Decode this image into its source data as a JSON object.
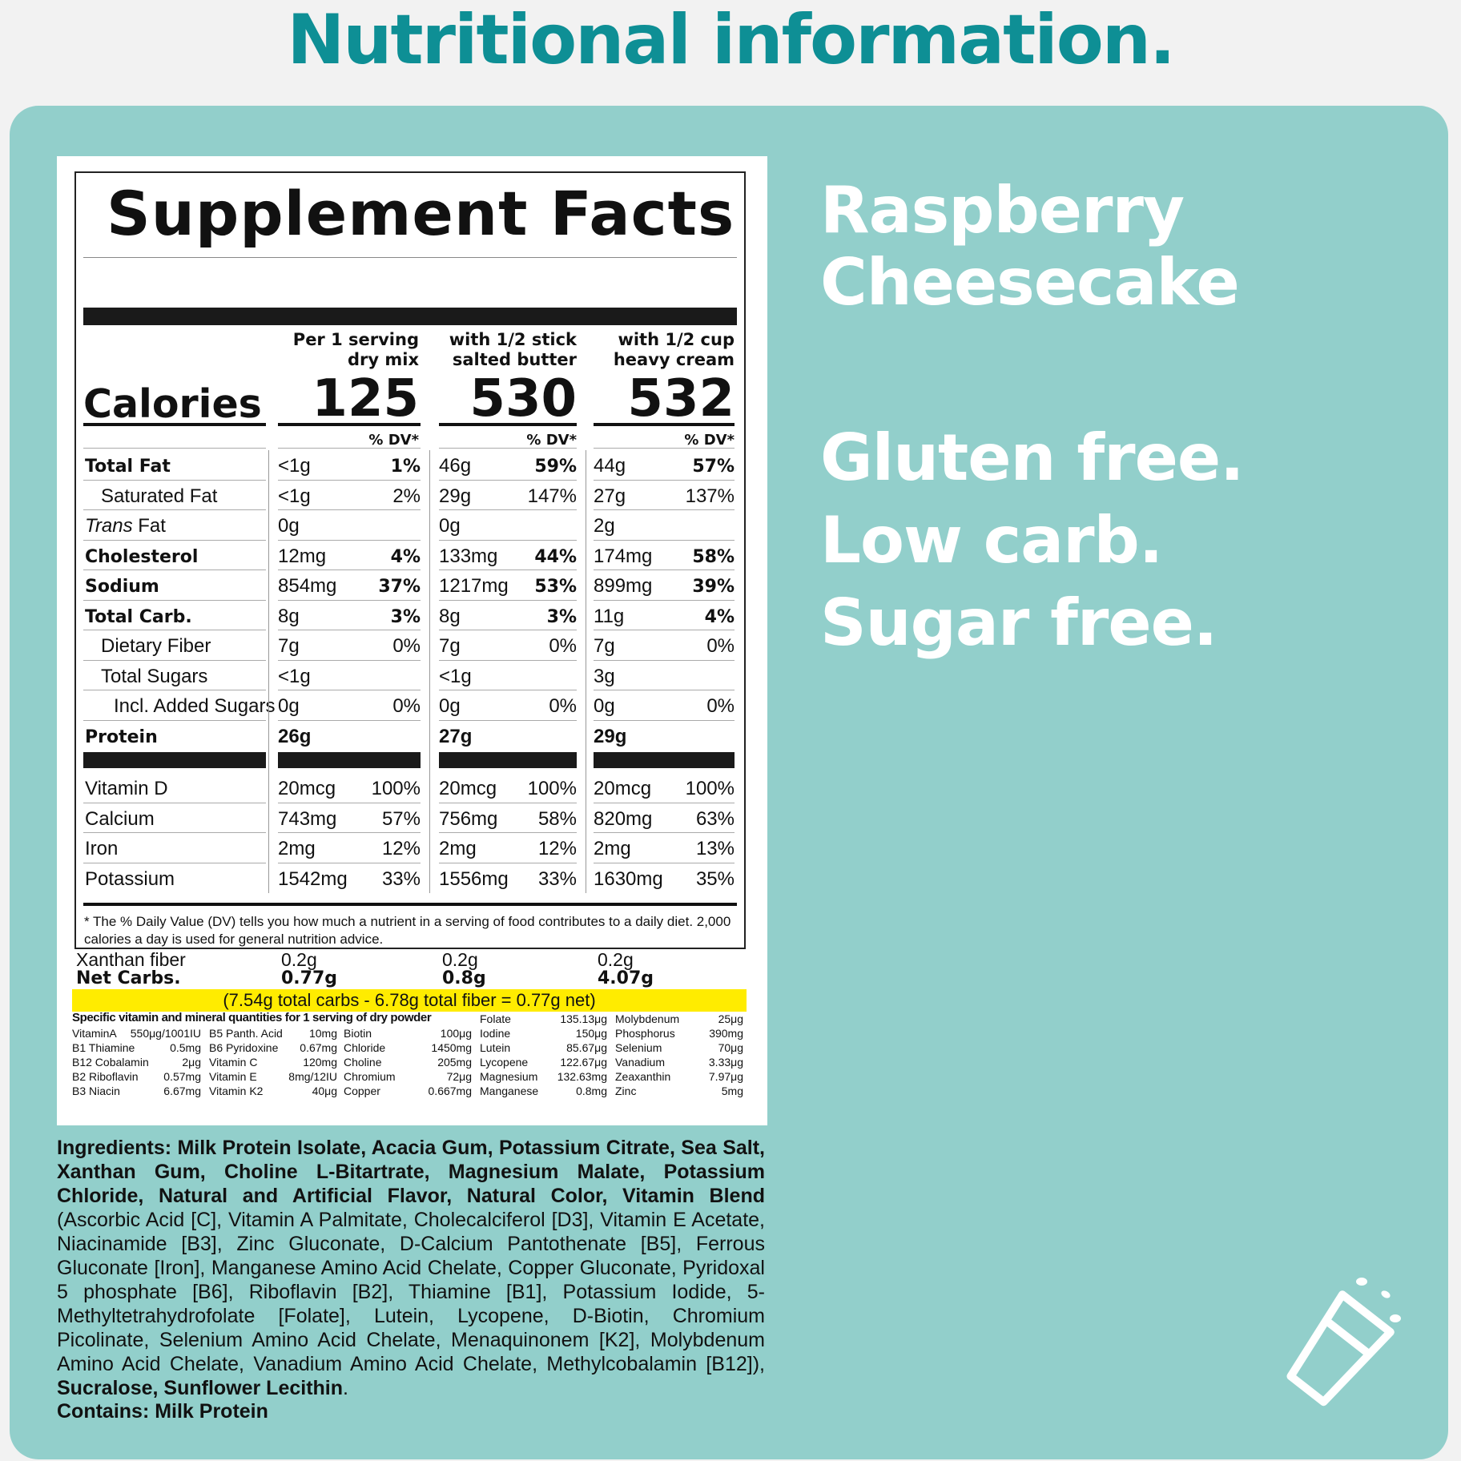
{
  "header": {
    "title": "Nutritional information."
  },
  "facts": {
    "title": "Supplement Facts",
    "calories_label": "Calories",
    "columns": [
      {
        "line1": "Per 1 serving",
        "line2": "dry mix",
        "calories": "125"
      },
      {
        "line1": "with 1/2 stick",
        "line2": "salted butter",
        "calories": "530"
      },
      {
        "line1": "with 1/2 cup",
        "line2": "heavy cream",
        "calories": "532"
      }
    ],
    "dv_header": "% DV*",
    "rows": [
      {
        "name": "Total Fat",
        "vals": [
          [
            "<1g",
            "1%"
          ],
          [
            "46g",
            "59%"
          ],
          [
            "44g",
            "57%"
          ]
        ]
      },
      {
        "name": "Saturated Fat",
        "vals": [
          [
            "<1g",
            "2%"
          ],
          [
            "29g",
            "147%"
          ],
          [
            "27g",
            "137%"
          ]
        ]
      },
      {
        "name_italic": "Trans",
        "name": " Fat",
        "vals": [
          [
            "0g",
            ""
          ],
          [
            "0g",
            ""
          ],
          [
            "2g",
            ""
          ]
        ]
      },
      {
        "name": "Cholesterol",
        "vals": [
          [
            "12mg",
            "4%"
          ],
          [
            "133mg",
            "44%"
          ],
          [
            "174mg",
            "58%"
          ]
        ]
      },
      {
        "name": "Sodium",
        "vals": [
          [
            "854mg",
            "37%"
          ],
          [
            "1217mg",
            "53%"
          ],
          [
            "899mg",
            "39%"
          ]
        ]
      },
      {
        "name": "Total Carb.",
        "vals": [
          [
            "8g",
            "3%"
          ],
          [
            "8g",
            "3%"
          ],
          [
            "11g",
            "4%"
          ]
        ]
      },
      {
        "name": "Dietary Fiber",
        "vals": [
          [
            "7g",
            "0%"
          ],
          [
            "7g",
            "0%"
          ],
          [
            "7g",
            "0%"
          ]
        ]
      },
      {
        "name": "Total Sugars",
        "vals": [
          [
            "<1g",
            ""
          ],
          [
            "<1g",
            ""
          ],
          [
            "3g",
            ""
          ]
        ]
      },
      {
        "name": "Incl. Added Sugars",
        "vals": [
          [
            "0g",
            "0%"
          ],
          [
            "0g",
            "0%"
          ],
          [
            "0g",
            "0%"
          ]
        ]
      },
      {
        "name": "Protein",
        "vals": [
          [
            "26g",
            ""
          ],
          [
            "27g",
            ""
          ],
          [
            "29g",
            ""
          ]
        ]
      }
    ],
    "vitamins": [
      {
        "name": "Vitamin D",
        "vals": [
          [
            "20mcg",
            "100%"
          ],
          [
            "20mcg",
            "100%"
          ],
          [
            "20mcg",
            "100%"
          ]
        ]
      },
      {
        "name": "Calcium",
        "vals": [
          [
            "743mg",
            "57%"
          ],
          [
            "756mg",
            "58%"
          ],
          [
            "820mg",
            "63%"
          ]
        ]
      },
      {
        "name": "Iron",
        "vals": [
          [
            "2mg",
            "12%"
          ],
          [
            "2mg",
            "12%"
          ],
          [
            "2mg",
            "13%"
          ]
        ]
      },
      {
        "name": "Potassium",
        "vals": [
          [
            "1542mg",
            "33%"
          ],
          [
            "1556mg",
            "33%"
          ],
          [
            "1630mg",
            "35%"
          ]
        ]
      }
    ],
    "footnote": "* The % Daily Value (DV) tells you how much a nutrient in a serving of food contributes to a daily diet. 2,000 calories a day is used for general nutrition advice."
  },
  "extras": {
    "xanthan_label": "Xanthan fiber",
    "xanthan_vals": [
      "0.2g",
      "0.2g",
      "0.2g"
    ],
    "netcarbs_label": "Net Carbs.",
    "netcarbs_vals": [
      "0.77g",
      "0.8g",
      "4.07g"
    ],
    "formula": "(7.54g total carbs - 6.78g total fiber = 0.77g net)"
  },
  "vitamin_table": {
    "heading": "Specific vitamin and mineral quantities for 1 serving of dry powder",
    "col1": [
      [
        "VitaminA",
        "550μg/1001IU"
      ],
      [
        "B1 Thiamine",
        "0.5mg"
      ],
      [
        "B12 Cobalamin",
        "2μg"
      ],
      [
        "B2 Riboflavin",
        "0.57mg"
      ],
      [
        "B3 Niacin",
        "6.67mg"
      ]
    ],
    "col2": [
      [
        "B5 Panth. Acid",
        "10mg"
      ],
      [
        "B6 Pyridoxine",
        "0.67mg"
      ],
      [
        "Vitamin C",
        "120mg"
      ],
      [
        "Vitamin E",
        "8mg/12IU"
      ],
      [
        "Vitamin K2",
        "40μg"
      ]
    ],
    "col3": [
      [
        "Biotin",
        "100μg"
      ],
      [
        "Chloride",
        "1450mg"
      ],
      [
        "Choline",
        "205mg"
      ],
      [
        "Chromium",
        "72μg"
      ],
      [
        "Copper",
        "0.667mg"
      ]
    ],
    "col4": [
      [
        "Folate",
        "135.13μg"
      ],
      [
        "Iodine",
        "150μg"
      ],
      [
        "Lutein",
        "85.67μg"
      ],
      [
        "Lycopene",
        "122.67μg"
      ],
      [
        "Magnesium",
        "132.63mg"
      ],
      [
        "Manganese",
        "0.8mg"
      ]
    ],
    "col5": [
      [
        "Molybdenum",
        "25μg"
      ],
      [
        "Phosphorus",
        "390mg"
      ],
      [
        "Selenium",
        "70μg"
      ],
      [
        "Vanadium",
        "3.33μg"
      ],
      [
        "Zeaxanthin",
        "7.97μg"
      ],
      [
        "Zinc",
        "5mg"
      ]
    ]
  },
  "product": {
    "flavor_line1": "Raspberry",
    "flavor_line2": "Cheesecake",
    "claim1": "Gluten free.",
    "claim2": "Low carb.",
    "claim3": "Sugar free."
  },
  "ingredients": {
    "bold_part": "Ingredients: Milk Protein Isolate, Acacia Gum, Potassium Citrate, Sea Salt, Xanthan Gum, Choline L-Bitartrate, Magnesium Malate, Potassium Chloride, Natural and Artificial Flavor, Natural Color, Vitamin Blend",
    "regular_part": " (Ascorbic Acid [C], Vitamin A Palmitate, Cholecalciferol [D3], Vitamin E Acetate, Niacinamide [B3], Zinc Gluconate, D-Calcium Pantothenate [B5], Ferrous Gluconate [Iron], Manganese Amino Acid Chelate, Copper Gluconate, Pyridoxal 5 phosphate [B6], Riboflavin [B2], Thiamine [B1], Potassium Iodide, 5-Methyltetrahydrofolate [Folate], Lutein, Lycopene, D-Biotin, Chromium Picolinate, Selenium Amino Acid Chelate, Menaquinonem [K2], Molybdenum Amino Acid Chelate, Vanadium Amino Acid Chelate, Methylcobalamin [B12]), ",
    "bold_end": "Sucralose, Sunflower Lecithin",
    "period": ".",
    "contains": "Contains: Milk Protein"
  },
  "icons": {
    "shaker": "shaker-cup-icon"
  }
}
